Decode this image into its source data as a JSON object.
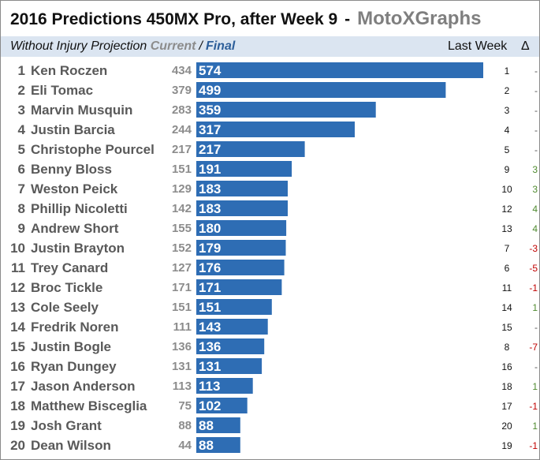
{
  "header": {
    "title": "2016 Predictions 450MX Pro, after Week 9",
    "separator": "-",
    "brand": "MotoXGraphs"
  },
  "subheader": {
    "label": "Without Injury Projection",
    "current_label": "Current",
    "slash": "/",
    "final_label": "Final",
    "last_week_label": "Last Week",
    "delta_label": "Δ"
  },
  "colors": {
    "bar": "#2e6db4",
    "subheader_bg": "#dbe5f1",
    "delta_up": "#4e8a2e",
    "delta_down": "#c00000",
    "delta_none": "#555555"
  },
  "chart_data": {
    "type": "bar",
    "orientation": "horizontal",
    "title": "2016 Predictions 450MX Pro, after Week 9",
    "categories": [
      "Ken Roczen",
      "Eli Tomac",
      "Marvin Musquin",
      "Justin Barcia",
      "Christophe Pourcel",
      "Benny Bloss",
      "Weston Peick",
      "Phillip Nicoletti",
      "Andrew Short",
      "Justin Brayton",
      "Trey Canard",
      "Broc Tickle",
      "Cole Seely",
      "Fredrik Noren",
      "Justin Bogle",
      "Ryan Dungey",
      "Jason Anderson",
      "Matthew Bisceglia",
      "Josh Grant",
      "Dean Wilson"
    ],
    "ranks": [
      "1",
      "2",
      "3",
      "4",
      "5",
      "6",
      "7",
      "8",
      "9",
      "10",
      "11",
      "12",
      "13",
      "14",
      "15",
      "16",
      "17",
      "18",
      "19",
      "20"
    ],
    "series": [
      {
        "name": "Current",
        "values": [
          434,
          379,
          283,
          244,
          217,
          151,
          129,
          142,
          155,
          152,
          127,
          171,
          151,
          111,
          136,
          131,
          113,
          75,
          88,
          44
        ]
      },
      {
        "name": "Final",
        "values": [
          574,
          499,
          359,
          317,
          217,
          191,
          183,
          183,
          180,
          179,
          176,
          171,
          151,
          143,
          136,
          131,
          113,
          102,
          88,
          88
        ]
      }
    ],
    "last_week": [
      "1",
      "2",
      "3",
      "4",
      "5",
      "9",
      "10",
      "12",
      "13",
      "7",
      "6",
      "11",
      "14",
      "15",
      "8",
      "16",
      "18",
      "17",
      "20",
      "19"
    ],
    "delta": [
      "-",
      "-",
      "-",
      "-",
      "-",
      "3",
      "3",
      "4",
      "4",
      "-3",
      "-5",
      "-1",
      "1",
      "-",
      "-7",
      "-",
      "1",
      "-1",
      "1",
      "-1"
    ],
    "xlim": [
      0,
      574
    ],
    "grid": false,
    "legend": "none"
  }
}
